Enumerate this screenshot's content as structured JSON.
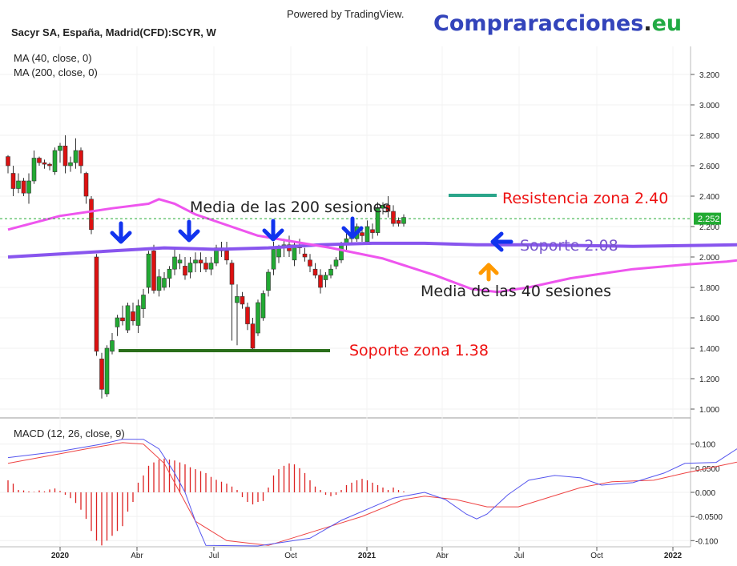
{
  "header": {
    "powered_by": "Powered by TradingView.",
    "brand_main": "Compraracciones",
    "brand_dot": ".",
    "brand_tld": "eu",
    "brand_colors": {
      "main": "#3344bb",
      "dot": "#222222",
      "tld": "#22aa44"
    },
    "symbol": "Sacyr SA, España, Madrid(CFD):SCYR, W",
    "ma_fast": "MA (40, close, 0)",
    "ma_slow": "MA (200, close, 0)",
    "macd_title": "MACD (12, 26, close, 9)"
  },
  "chart_data": [
    {
      "type": "candlestick",
      "title": "Sacyr SA, España, Madrid(CFD):SCYR, W",
      "y_ticks": [
        "3.200",
        "3.000",
        "2.800",
        "2.600",
        "2.400",
        "2.200",
        "2.000",
        "1.800",
        "1.600",
        "1.400",
        "1.200",
        "1.000"
      ],
      "x_ticks": [
        "2020",
        "Abr",
        "Jul",
        "Oct",
        "2021",
        "Abr",
        "Jul",
        "Oct",
        "2022"
      ],
      "ylim": [
        0.95,
        3.3
      ],
      "last_price": "2.252",
      "colors": {
        "up": "#22aa33",
        "down": "#dd1111",
        "ma40": "#ee55ee",
        "ma200": "#8855ee"
      },
      "candles": [
        [
          2.66,
          2.67,
          2.55,
          2.6
        ],
        [
          2.55,
          2.6,
          2.4,
          2.45
        ],
        [
          2.45,
          2.55,
          2.42,
          2.5
        ],
        [
          2.5,
          2.52,
          2.4,
          2.42
        ],
        [
          2.42,
          2.55,
          2.35,
          2.5
        ],
        [
          2.5,
          2.7,
          2.48,
          2.65
        ],
        [
          2.65,
          2.66,
          2.6,
          2.62
        ],
        [
          2.62,
          2.64,
          2.58,
          2.61
        ],
        [
          2.61,
          2.62,
          2.57,
          2.6
        ],
        [
          2.56,
          2.72,
          2.54,
          2.7
        ],
        [
          2.7,
          2.75,
          2.62,
          2.73
        ],
        [
          2.73,
          2.8,
          2.55,
          2.6
        ],
        [
          2.6,
          2.66,
          2.56,
          2.62
        ],
        [
          2.62,
          2.78,
          2.58,
          2.7
        ],
        [
          2.7,
          2.72,
          2.55,
          2.6
        ],
        [
          2.55,
          2.56,
          2.35,
          2.4
        ],
        [
          2.38,
          2.4,
          2.15,
          2.18
        ],
        [
          2.0,
          2.02,
          1.35,
          1.38
        ],
        [
          1.33,
          1.37,
          1.07,
          1.13
        ],
        [
          1.1,
          1.42,
          1.08,
          1.4
        ],
        [
          1.38,
          1.5,
          1.36,
          1.45
        ],
        [
          1.54,
          1.62,
          1.48,
          1.6
        ],
        [
          1.6,
          1.68,
          1.55,
          1.58
        ],
        [
          1.52,
          1.7,
          1.5,
          1.68
        ],
        [
          1.64,
          1.7,
          1.55,
          1.58
        ],
        [
          1.55,
          1.72,
          1.5,
          1.68
        ],
        [
          1.66,
          1.79,
          1.6,
          1.75
        ],
        [
          1.8,
          2.04,
          1.76,
          2.02
        ],
        [
          2.04,
          2.08,
          1.76,
          1.78
        ],
        [
          1.78,
          1.92,
          1.74,
          1.87
        ],
        [
          1.8,
          1.9,
          1.78,
          1.86
        ],
        [
          1.86,
          1.94,
          1.8,
          1.92
        ],
        [
          1.92,
          2.06,
          1.88,
          2.0
        ],
        [
          1.96,
          2.02,
          1.92,
          1.98
        ],
        [
          1.94,
          2.0,
          1.85,
          1.88
        ],
        [
          1.9,
          2.0,
          1.86,
          1.96
        ],
        [
          1.96,
          2.03,
          1.9,
          1.98
        ],
        [
          1.98,
          2.03,
          1.9,
          1.96
        ],
        [
          1.96,
          2.0,
          1.9,
          1.92
        ],
        [
          1.92,
          2.0,
          1.88,
          1.96
        ],
        [
          1.96,
          2.08,
          1.94,
          2.06
        ],
        [
          2.06,
          2.1,
          2.0,
          2.04
        ],
        [
          2.04,
          2.1,
          1.95,
          1.98
        ],
        [
          1.96,
          1.98,
          1.45,
          1.82
        ],
        [
          1.7,
          1.82,
          1.42,
          1.74
        ],
        [
          1.74,
          1.77,
          1.66,
          1.69
        ],
        [
          1.67,
          1.7,
          1.52,
          1.56
        ],
        [
          1.56,
          1.6,
          1.38,
          1.4
        ],
        [
          1.5,
          1.72,
          1.48,
          1.7
        ],
        [
          1.6,
          1.78,
          1.58,
          1.76
        ],
        [
          1.78,
          1.92,
          1.74,
          1.9
        ],
        [
          1.92,
          2.1,
          1.88,
          2.05
        ],
        [
          2.0,
          2.08,
          1.96,
          2.06
        ],
        [
          2.06,
          2.12,
          2.0,
          2.08
        ],
        [
          2.08,
          2.14,
          2.0,
          2.04
        ],
        [
          1.98,
          2.1,
          1.94,
          2.08
        ],
        [
          2.08,
          2.12,
          2.02,
          2.06
        ],
        [
          2.02,
          2.06,
          1.97,
          2.0
        ],
        [
          1.98,
          2.02,
          1.9,
          1.94
        ],
        [
          1.92,
          1.96,
          1.86,
          1.88
        ],
        [
          1.88,
          1.92,
          1.76,
          1.8
        ],
        [
          1.85,
          1.9,
          1.8,
          1.88
        ],
        [
          1.88,
          1.95,
          1.86,
          1.92
        ],
        [
          1.94,
          2.0,
          1.92,
          1.98
        ],
        [
          1.98,
          2.1,
          1.96,
          2.08
        ],
        [
          2.08,
          2.16,
          2.04,
          2.12
        ],
        [
          2.12,
          2.18,
          2.08,
          2.16
        ],
        [
          2.12,
          2.22,
          2.1,
          2.2
        ],
        [
          2.16,
          2.2,
          2.1,
          2.14
        ],
        [
          2.1,
          2.24,
          2.08,
          2.2
        ],
        [
          2.18,
          2.22,
          2.12,
          2.16
        ],
        [
          2.16,
          2.36,
          2.14,
          2.32
        ],
        [
          2.32,
          2.36,
          2.28,
          2.34
        ],
        [
          2.34,
          2.4,
          2.26,
          2.3
        ],
        [
          2.3,
          2.34,
          2.2,
          2.22
        ],
        [
          2.24,
          2.26,
          2.2,
          2.22
        ],
        [
          2.22,
          2.28,
          2.2,
          2.26
        ]
      ],
      "ma40": [
        [
          0,
          2.18
        ],
        [
          10,
          2.27
        ],
        [
          20,
          2.32
        ],
        [
          27,
          2.35
        ],
        [
          29,
          2.38
        ],
        [
          32,
          2.35
        ],
        [
          36,
          2.28
        ],
        [
          48,
          2.14
        ],
        [
          62,
          2.06
        ],
        [
          72,
          1.99
        ],
        [
          82,
          1.88
        ],
        [
          89,
          1.79
        ],
        [
          94,
          1.77
        ],
        [
          100,
          1.8
        ],
        [
          108,
          1.86
        ],
        [
          114,
          1.89
        ],
        [
          120,
          1.92
        ],
        [
          130,
          1.95
        ],
        [
          138,
          1.97
        ],
        [
          146,
          2.0
        ]
      ],
      "ma200": [
        [
          0,
          2.0
        ],
        [
          10,
          2.02
        ],
        [
          20,
          2.04
        ],
        [
          30,
          2.06
        ],
        [
          40,
          2.05
        ],
        [
          50,
          2.06
        ],
        [
          60,
          2.08
        ],
        [
          70,
          2.09
        ],
        [
          80,
          2.09
        ],
        [
          90,
          2.08
        ],
        [
          100,
          2.08
        ],
        [
          120,
          2.07
        ],
        [
          140,
          2.08
        ],
        [
          146,
          2.08
        ]
      ]
    },
    {
      "type": "macd",
      "title": "MACD (12, 26, close, 9)",
      "y_ticks": [
        "0.100",
        "0.0500",
        "0.000",
        "-0.0500",
        "-0.100"
      ],
      "ylim": [
        -0.105,
        0.115
      ],
      "colors": {
        "macd": "#5555ee",
        "signal": "#ee4444",
        "hist": "#dd2222"
      },
      "macd": [
        [
          0,
          0.072
        ],
        [
          10,
          0.085
        ],
        [
          18,
          0.1
        ],
        [
          22,
          0.11
        ],
        [
          26,
          0.11
        ],
        [
          29,
          0.09
        ],
        [
          32,
          0.04
        ],
        [
          34,
          0.0
        ],
        [
          36,
          -0.06
        ],
        [
          38,
          -0.11
        ],
        [
          48,
          -0.13
        ],
        [
          58,
          -0.095
        ],
        [
          64,
          -0.058
        ],
        [
          74,
          -0.012
        ],
        [
          80,
          0.0
        ],
        [
          84,
          -0.015
        ],
        [
          88,
          -0.045
        ],
        [
          90,
          -0.055
        ],
        [
          92,
          -0.045
        ],
        [
          96,
          -0.005
        ],
        [
          100,
          0.025
        ],
        [
          105,
          0.035
        ],
        [
          110,
          0.03
        ],
        [
          114,
          0.015
        ],
        [
          120,
          0.02
        ],
        [
          126,
          0.04
        ],
        [
          130,
          0.06
        ],
        [
          136,
          0.062
        ],
        [
          140,
          0.09
        ],
        [
          143,
          0.098
        ],
        [
          148,
          0.09
        ],
        [
          149,
          0.089
        ]
      ],
      "signal": [
        [
          0,
          0.06
        ],
        [
          15,
          0.09
        ],
        [
          22,
          0.103
        ],
        [
          26,
          0.1
        ],
        [
          30,
          0.06
        ],
        [
          33,
          0.0
        ],
        [
          36,
          -0.06
        ],
        [
          42,
          -0.1
        ],
        [
          50,
          -0.11
        ],
        [
          56,
          -0.09
        ],
        [
          62,
          -0.07
        ],
        [
          68,
          -0.05
        ],
        [
          76,
          -0.015
        ],
        [
          80,
          -0.008
        ],
        [
          86,
          -0.015
        ],
        [
          92,
          -0.03
        ],
        [
          98,
          -0.03
        ],
        [
          104,
          -0.01
        ],
        [
          110,
          0.01
        ],
        [
          116,
          0.022
        ],
        [
          124,
          0.025
        ],
        [
          130,
          0.04
        ],
        [
          138,
          0.058
        ],
        [
          144,
          0.072
        ],
        [
          149,
          0.085
        ]
      ],
      "hist": [
        0.025,
        0.018,
        0.005,
        0.004,
        0.002,
        0.001,
        0.004,
        0.002,
        0.006,
        0.008,
        0.003,
        -0.005,
        -0.012,
        -0.022,
        -0.036,
        -0.055,
        -0.08,
        -0.1,
        -0.11,
        -0.1,
        -0.09,
        -0.08,
        -0.07,
        -0.04,
        -0.02,
        0.02,
        0.035,
        0.055,
        0.062,
        0.068,
        0.07,
        0.068,
        0.066,
        0.062,
        0.058,
        0.052,
        0.048,
        0.044,
        0.04,
        0.032,
        0.026,
        0.022,
        0.018,
        0.012,
        0.005,
        -0.01,
        -0.02,
        -0.025,
        -0.02,
        -0.018,
        0.01,
        0.035,
        0.048,
        0.055,
        0.06,
        0.058,
        0.05,
        0.04,
        0.025,
        0.012,
        0.005,
        -0.005,
        -0.008,
        -0.005,
        0.005,
        0.015,
        0.02,
        0.025,
        0.028,
        0.025,
        0.02,
        0.015,
        0.01,
        0.005,
        0.01,
        0.005,
        0.002
      ]
    }
  ],
  "annotations": {
    "media200": "Media de las 200 sesiones",
    "media40": "Media de las 40 sesiones",
    "resistencia": "Resistencia zona 2.40",
    "soporte208": "Soporte 2.08",
    "soporte138": "Soporte zona 1.38",
    "colors": {
      "black": "#222222",
      "red": "#ee1111",
      "purple": "#7755cc",
      "blue": "#1133ee",
      "orange": "#ff9900",
      "green": "#2a6e1a",
      "teal": "#2aa58a"
    }
  }
}
